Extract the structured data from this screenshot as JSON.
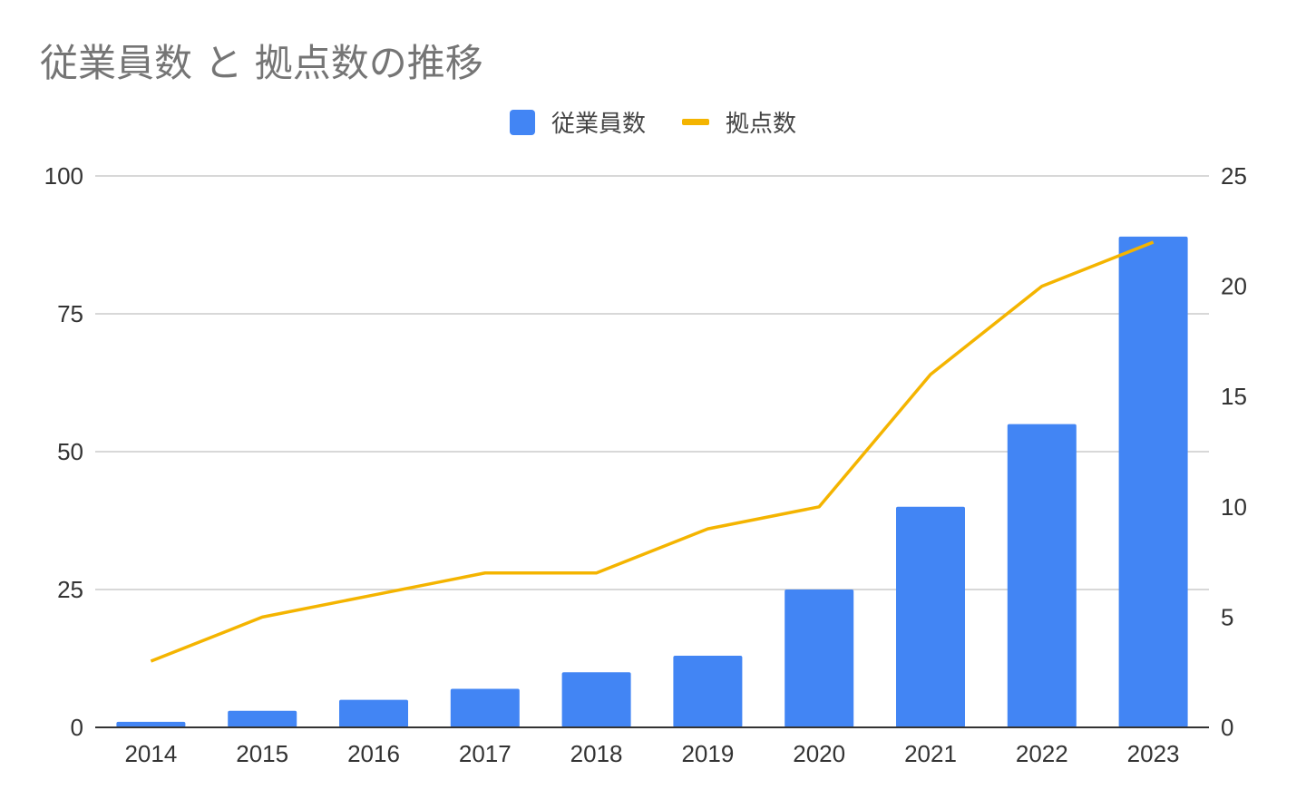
{
  "title": "従業員数 と 拠点数の推移",
  "colors": {
    "bar": "#4285f4",
    "line": "#f4b400",
    "grid": "#cccccc",
    "axis": "#333333"
  },
  "chart_data": {
    "type": "bar",
    "title": "従業員数 と 拠点数の推移",
    "categories": [
      "2014",
      "2015",
      "2016",
      "2017",
      "2018",
      "2019",
      "2020",
      "2021",
      "2022",
      "2023"
    ],
    "series": [
      {
        "name": "従業員数",
        "type": "bar",
        "axis": "left",
        "values": [
          1,
          3,
          5,
          7,
          10,
          13,
          25,
          40,
          55,
          89
        ]
      },
      {
        "name": "拠点数",
        "type": "line",
        "axis": "right",
        "values": [
          3,
          5,
          6,
          7,
          7,
          9,
          10,
          16,
          20,
          22
        ]
      }
    ],
    "ylim_left": [
      0,
      100
    ],
    "yticks_left": [
      0,
      25,
      50,
      75,
      100
    ],
    "ylim_right": [
      0,
      25
    ],
    "yticks_right": [
      0,
      5,
      10,
      15,
      20,
      25
    ],
    "xlabel": "",
    "ylabel": "",
    "grid": true,
    "legend_position": "top-center"
  }
}
